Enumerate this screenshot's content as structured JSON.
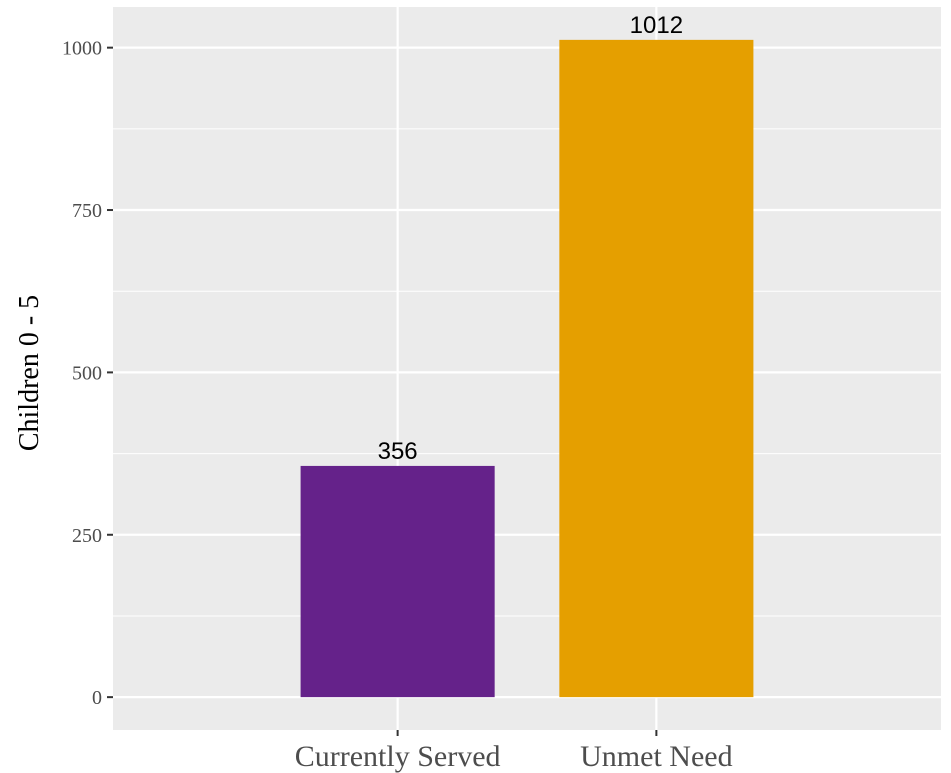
{
  "chart_data": {
    "type": "bar",
    "title": "",
    "xlabel": "",
    "ylabel": "Children 0 - 5",
    "categories": [
      "Currently Served",
      "Unmet Need"
    ],
    "values": [
      356,
      1012
    ],
    "data_labels": [
      "356",
      "1012"
    ],
    "colors": [
      "#65228A",
      "#E59F00"
    ],
    "yticks": [
      0,
      250,
      500,
      750,
      1000
    ],
    "ytick_labels": [
      "0",
      "250",
      "500",
      "750",
      "1000"
    ],
    "ylim": [
      -50.6,
      1062.6
    ],
    "grid": true,
    "panel_background": "#EBEBEB",
    "grid_color": "#FFFFFF",
    "legend": "none"
  }
}
